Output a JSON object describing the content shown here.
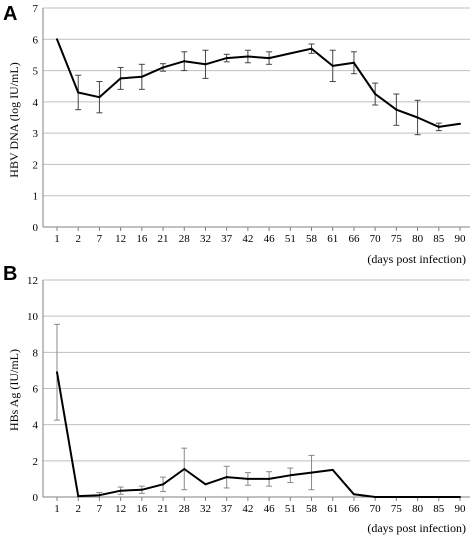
{
  "chart_data": [
    {
      "type": "line",
      "panel": "A",
      "title": "",
      "ylabel": "HBV DNA (log IU/mL)",
      "xlabel": "(days post infection)",
      "ylim": [
        0,
        7
      ],
      "yticks": [
        "0",
        "1",
        "2",
        "3",
        "4",
        "5",
        "6",
        "7"
      ],
      "categories": [
        "1",
        "2",
        "7",
        "12",
        "16",
        "21",
        "28",
        "32",
        "37",
        "42",
        "46",
        "51",
        "58",
        "61",
        "66",
        "70",
        "75",
        "80",
        "85",
        "90"
      ],
      "grid": "horizontal",
      "series": [
        {
          "values": [
            6.0,
            4.3,
            4.15,
            4.75,
            4.8,
            5.1,
            5.3,
            5.2,
            5.4,
            5.45,
            5.4,
            5.55,
            5.7,
            5.15,
            5.25,
            4.25,
            3.75,
            3.5,
            3.2,
            3.3
          ],
          "error": [
            null,
            0.55,
            0.5,
            0.35,
            0.4,
            0.12,
            0.3,
            0.45,
            0.12,
            0.2,
            0.2,
            null,
            0.15,
            0.5,
            0.35,
            0.35,
            0.5,
            0.55,
            0.12,
            null
          ]
        }
      ]
    },
    {
      "type": "line",
      "panel": "B",
      "title": "",
      "ylabel": "HBs Ag (IU/mL)",
      "xlabel": "(days post infection)",
      "ylim": [
        0,
        12
      ],
      "yticks": [
        "0",
        "2",
        "4",
        "6",
        "8",
        "10",
        "12"
      ],
      "categories": [
        "1",
        "2",
        "7",
        "12",
        "16",
        "21",
        "28",
        "32",
        "37",
        "42",
        "46",
        "51",
        "58",
        "61",
        "66",
        "70",
        "75",
        "80",
        "85",
        "90"
      ],
      "grid": "horizontal",
      "series": [
        {
          "values": [
            6.9,
            0.05,
            0.1,
            0.35,
            0.4,
            0.7,
            1.55,
            0.7,
            1.1,
            1.0,
            1.0,
            1.2,
            1.35,
            1.5,
            0.15,
            0.0,
            0.0,
            0.0,
            0.0,
            0.0
          ],
          "error": [
            2.65,
            null,
            0.15,
            0.2,
            0.2,
            0.4,
            1.15,
            null,
            0.6,
            0.35,
            0.4,
            0.4,
            0.95,
            null,
            null,
            null,
            null,
            null,
            null,
            null
          ]
        }
      ]
    }
  ]
}
